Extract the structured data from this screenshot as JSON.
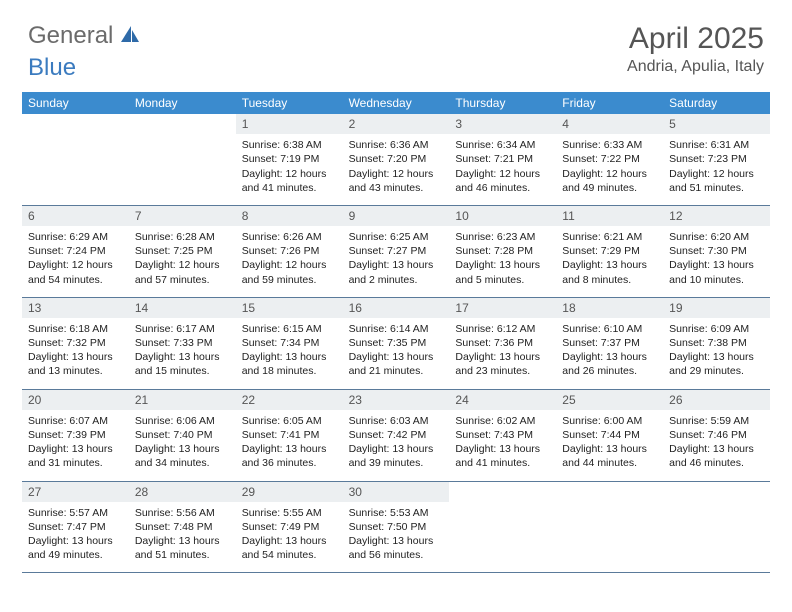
{
  "logo": {
    "text1": "General",
    "text2": "Blue"
  },
  "title": "April 2025",
  "location": "Andria, Apulia, Italy",
  "weekday_header_bg": "#3b8bce",
  "weekdays": [
    "Sunday",
    "Monday",
    "Tuesday",
    "Wednesday",
    "Thursday",
    "Friday",
    "Saturday"
  ],
  "weeks": [
    [
      {
        "empty": true
      },
      {
        "empty": true
      },
      {
        "num": "1",
        "sunrise": "Sunrise: 6:38 AM",
        "sunset": "Sunset: 7:19 PM",
        "day1": "Daylight: 12 hours",
        "day2": "and 41 minutes."
      },
      {
        "num": "2",
        "sunrise": "Sunrise: 6:36 AM",
        "sunset": "Sunset: 7:20 PM",
        "day1": "Daylight: 12 hours",
        "day2": "and 43 minutes."
      },
      {
        "num": "3",
        "sunrise": "Sunrise: 6:34 AM",
        "sunset": "Sunset: 7:21 PM",
        "day1": "Daylight: 12 hours",
        "day2": "and 46 minutes."
      },
      {
        "num": "4",
        "sunrise": "Sunrise: 6:33 AM",
        "sunset": "Sunset: 7:22 PM",
        "day1": "Daylight: 12 hours",
        "day2": "and 49 minutes."
      },
      {
        "num": "5",
        "sunrise": "Sunrise: 6:31 AM",
        "sunset": "Sunset: 7:23 PM",
        "day1": "Daylight: 12 hours",
        "day2": "and 51 minutes."
      }
    ],
    [
      {
        "num": "6",
        "sunrise": "Sunrise: 6:29 AM",
        "sunset": "Sunset: 7:24 PM",
        "day1": "Daylight: 12 hours",
        "day2": "and 54 minutes."
      },
      {
        "num": "7",
        "sunrise": "Sunrise: 6:28 AM",
        "sunset": "Sunset: 7:25 PM",
        "day1": "Daylight: 12 hours",
        "day2": "and 57 minutes."
      },
      {
        "num": "8",
        "sunrise": "Sunrise: 6:26 AM",
        "sunset": "Sunset: 7:26 PM",
        "day1": "Daylight: 12 hours",
        "day2": "and 59 minutes."
      },
      {
        "num": "9",
        "sunrise": "Sunrise: 6:25 AM",
        "sunset": "Sunset: 7:27 PM",
        "day1": "Daylight: 13 hours",
        "day2": "and 2 minutes."
      },
      {
        "num": "10",
        "sunrise": "Sunrise: 6:23 AM",
        "sunset": "Sunset: 7:28 PM",
        "day1": "Daylight: 13 hours",
        "day2": "and 5 minutes."
      },
      {
        "num": "11",
        "sunrise": "Sunrise: 6:21 AM",
        "sunset": "Sunset: 7:29 PM",
        "day1": "Daylight: 13 hours",
        "day2": "and 8 minutes."
      },
      {
        "num": "12",
        "sunrise": "Sunrise: 6:20 AM",
        "sunset": "Sunset: 7:30 PM",
        "day1": "Daylight: 13 hours",
        "day2": "and 10 minutes."
      }
    ],
    [
      {
        "num": "13",
        "sunrise": "Sunrise: 6:18 AM",
        "sunset": "Sunset: 7:32 PM",
        "day1": "Daylight: 13 hours",
        "day2": "and 13 minutes."
      },
      {
        "num": "14",
        "sunrise": "Sunrise: 6:17 AM",
        "sunset": "Sunset: 7:33 PM",
        "day1": "Daylight: 13 hours",
        "day2": "and 15 minutes."
      },
      {
        "num": "15",
        "sunrise": "Sunrise: 6:15 AM",
        "sunset": "Sunset: 7:34 PM",
        "day1": "Daylight: 13 hours",
        "day2": "and 18 minutes."
      },
      {
        "num": "16",
        "sunrise": "Sunrise: 6:14 AM",
        "sunset": "Sunset: 7:35 PM",
        "day1": "Daylight: 13 hours",
        "day2": "and 21 minutes."
      },
      {
        "num": "17",
        "sunrise": "Sunrise: 6:12 AM",
        "sunset": "Sunset: 7:36 PM",
        "day1": "Daylight: 13 hours",
        "day2": "and 23 minutes."
      },
      {
        "num": "18",
        "sunrise": "Sunrise: 6:10 AM",
        "sunset": "Sunset: 7:37 PM",
        "day1": "Daylight: 13 hours",
        "day2": "and 26 minutes."
      },
      {
        "num": "19",
        "sunrise": "Sunrise: 6:09 AM",
        "sunset": "Sunset: 7:38 PM",
        "day1": "Daylight: 13 hours",
        "day2": "and 29 minutes."
      }
    ],
    [
      {
        "num": "20",
        "sunrise": "Sunrise: 6:07 AM",
        "sunset": "Sunset: 7:39 PM",
        "day1": "Daylight: 13 hours",
        "day2": "and 31 minutes."
      },
      {
        "num": "21",
        "sunrise": "Sunrise: 6:06 AM",
        "sunset": "Sunset: 7:40 PM",
        "day1": "Daylight: 13 hours",
        "day2": "and 34 minutes."
      },
      {
        "num": "22",
        "sunrise": "Sunrise: 6:05 AM",
        "sunset": "Sunset: 7:41 PM",
        "day1": "Daylight: 13 hours",
        "day2": "and 36 minutes."
      },
      {
        "num": "23",
        "sunrise": "Sunrise: 6:03 AM",
        "sunset": "Sunset: 7:42 PM",
        "day1": "Daylight: 13 hours",
        "day2": "and 39 minutes."
      },
      {
        "num": "24",
        "sunrise": "Sunrise: 6:02 AM",
        "sunset": "Sunset: 7:43 PM",
        "day1": "Daylight: 13 hours",
        "day2": "and 41 minutes."
      },
      {
        "num": "25",
        "sunrise": "Sunrise: 6:00 AM",
        "sunset": "Sunset: 7:44 PM",
        "day1": "Daylight: 13 hours",
        "day2": "and 44 minutes."
      },
      {
        "num": "26",
        "sunrise": "Sunrise: 5:59 AM",
        "sunset": "Sunset: 7:46 PM",
        "day1": "Daylight: 13 hours",
        "day2": "and 46 minutes."
      }
    ],
    [
      {
        "num": "27",
        "sunrise": "Sunrise: 5:57 AM",
        "sunset": "Sunset: 7:47 PM",
        "day1": "Daylight: 13 hours",
        "day2": "and 49 minutes."
      },
      {
        "num": "28",
        "sunrise": "Sunrise: 5:56 AM",
        "sunset": "Sunset: 7:48 PM",
        "day1": "Daylight: 13 hours",
        "day2": "and 51 minutes."
      },
      {
        "num": "29",
        "sunrise": "Sunrise: 5:55 AM",
        "sunset": "Sunset: 7:49 PM",
        "day1": "Daylight: 13 hours",
        "day2": "and 54 minutes."
      },
      {
        "num": "30",
        "sunrise": "Sunrise: 5:53 AM",
        "sunset": "Sunset: 7:50 PM",
        "day1": "Daylight: 13 hours",
        "day2": "and 56 minutes."
      },
      {
        "empty": true
      },
      {
        "empty": true
      },
      {
        "empty": true
      }
    ]
  ]
}
